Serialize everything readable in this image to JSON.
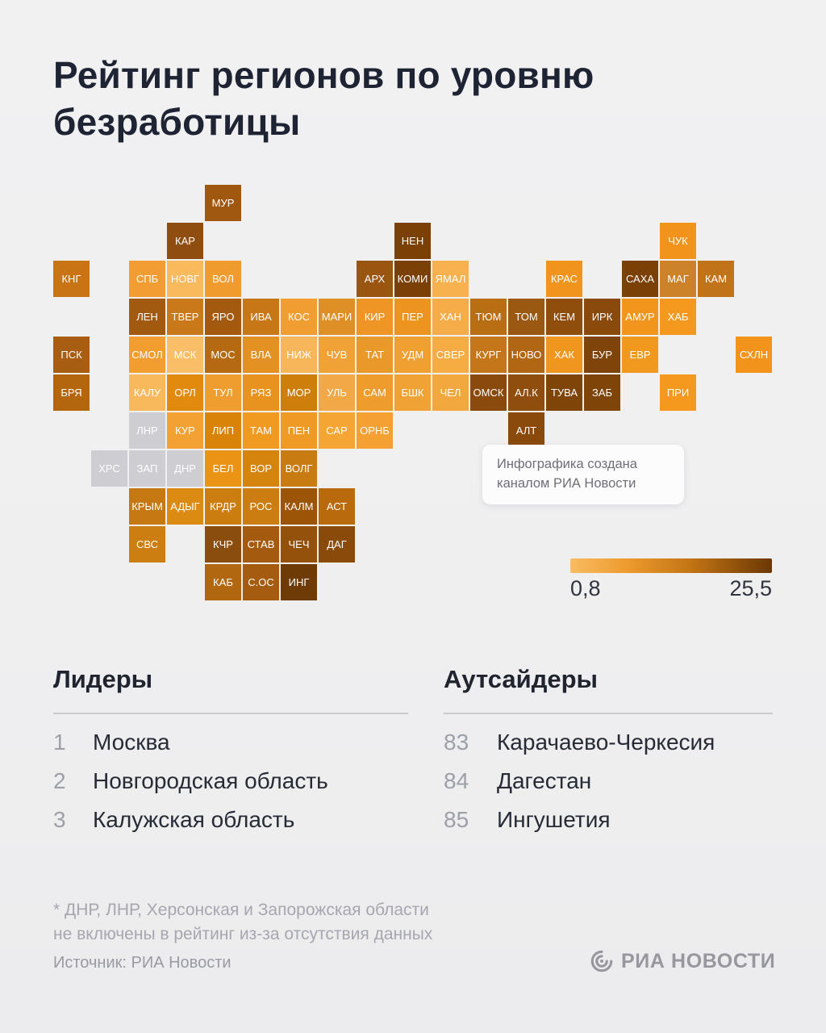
{
  "title_lines": [
    "Рейтинг регионов по уровню",
    "безработицы"
  ],
  "chart_data": {
    "type": "heatmap",
    "title": "Рейтинг регионов по уровню безработицы",
    "legend": {
      "min": 0.8,
      "max": 25.5,
      "min_label": "0,8",
      "max_label": "25,5",
      "start_color": "#F8BC62",
      "mid_colors": [
        "#EE9B2E",
        "#C27414"
      ],
      "end_color": "#6B3805",
      "excluded_color": "#CDCDD2"
    },
    "tiles": [
      {
        "label": "МУР",
        "row": 1,
        "col": 5,
        "color": "#A05710"
      },
      {
        "label": "КАР",
        "row": 2,
        "col": 4,
        "color": "#8F4D10"
      },
      {
        "label": "НЕН",
        "row": 2,
        "col": 10,
        "color": "#7A4005"
      },
      {
        "label": "ЧУК",
        "row": 2,
        "col": 17,
        "color": "#F2941C"
      },
      {
        "label": "КНГ",
        "row": 3,
        "col": 1,
        "color": "#C97414"
      },
      {
        "label": "СПБ",
        "row": 3,
        "col": 3,
        "color": "#F29D33"
      },
      {
        "label": "НОВГ",
        "row": 3,
        "col": 4,
        "color": "#F9BA5E"
      },
      {
        "label": "ВОЛ",
        "row": 3,
        "col": 5,
        "color": "#F09B2E"
      },
      {
        "label": "АРХ",
        "row": 3,
        "col": 9,
        "color": "#9A5510"
      },
      {
        "label": "КОМИ",
        "row": 3,
        "col": 10,
        "color": "#7A4005"
      },
      {
        "label": "ЯМАЛ",
        "row": 3,
        "col": 11,
        "color": "#F7B14F"
      },
      {
        "label": "КРАС",
        "row": 3,
        "col": 14,
        "color": "#F0941E"
      },
      {
        "label": "САХА",
        "row": 3,
        "col": 16,
        "color": "#7A4005"
      },
      {
        "label": "МАГ",
        "row": 3,
        "col": 17,
        "color": "#CC8228"
      },
      {
        "label": "КАМ",
        "row": 3,
        "col": 18,
        "color": "#C1731A"
      },
      {
        "label": "ЛЕН",
        "row": 4,
        "col": 3,
        "color": "#A25A10"
      },
      {
        "label": "ТВЕР",
        "row": 4,
        "col": 4,
        "color": "#C9791A"
      },
      {
        "label": "ЯРО",
        "row": 4,
        "col": 5,
        "color": "#A3590E"
      },
      {
        "label": "ИВА",
        "row": 4,
        "col": 6,
        "color": "#C87717"
      },
      {
        "label": "КОС",
        "row": 4,
        "col": 7,
        "color": "#F09E31"
      },
      {
        "label": "МАРИ",
        "row": 4,
        "col": 8,
        "color": "#DE8F26"
      },
      {
        "label": "КИР",
        "row": 4,
        "col": 9,
        "color": "#EE9526"
      },
      {
        "label": "ПЕР",
        "row": 4,
        "col": 10,
        "color": "#ED9320"
      },
      {
        "label": "ХАН",
        "row": 4,
        "col": 11,
        "color": "#F6AD49"
      },
      {
        "label": "ТЮМ",
        "row": 4,
        "col": 12,
        "color": "#B96E14"
      },
      {
        "label": "ТОМ",
        "row": 4,
        "col": 13,
        "color": "#9A5810"
      },
      {
        "label": "КЕМ",
        "row": 4,
        "col": 14,
        "color": "#8F4E0C"
      },
      {
        "label": "ИРК",
        "row": 4,
        "col": 15,
        "color": "#8A4A0C"
      },
      {
        "label": "АМУР",
        "row": 4,
        "col": 16,
        "color": "#F2951C"
      },
      {
        "label": "ХАБ",
        "row": 4,
        "col": 17,
        "color": "#F5991E"
      },
      {
        "label": "ПСК",
        "row": 5,
        "col": 1,
        "color": "#A85E12"
      },
      {
        "label": "СМОЛ",
        "row": 5,
        "col": 3,
        "color": "#F29D2F"
      },
      {
        "label": "МСК",
        "row": 5,
        "col": 4,
        "color": "#F9BE67"
      },
      {
        "label": "МОС",
        "row": 5,
        "col": 5,
        "color": "#B56A12"
      },
      {
        "label": "ВЛА",
        "row": 5,
        "col": 6,
        "color": "#E39122"
      },
      {
        "label": "НИЖ",
        "row": 5,
        "col": 7,
        "color": "#F8B65A"
      },
      {
        "label": "ЧУВ",
        "row": 5,
        "col": 8,
        "color": "#F0A236"
      },
      {
        "label": "ТАТ",
        "row": 5,
        "col": 9,
        "color": "#E9992A"
      },
      {
        "label": "УДМ",
        "row": 5,
        "col": 10,
        "color": "#F0A030"
      },
      {
        "label": "СВЕР",
        "row": 5,
        "col": 11,
        "color": "#F5AC42"
      },
      {
        "label": "КУРГ",
        "row": 5,
        "col": 12,
        "color": "#C5761A"
      },
      {
        "label": "НОВО",
        "row": 5,
        "col": 13,
        "color": "#B06612"
      },
      {
        "label": "ХАК",
        "row": 5,
        "col": 14,
        "color": "#F0961E"
      },
      {
        "label": "БУР",
        "row": 5,
        "col": 15,
        "color": "#7E440A"
      },
      {
        "label": "ЕВР",
        "row": 5,
        "col": 16,
        "color": "#F1991F"
      },
      {
        "label": "СХЛН",
        "row": 5,
        "col": 19,
        "color": "#F2941C"
      },
      {
        "label": "БРЯ",
        "row": 6,
        "col": 1,
        "color": "#B4660E"
      },
      {
        "label": "КАЛУ",
        "row": 6,
        "col": 3,
        "color": "#F8B95C"
      },
      {
        "label": "ОРЛ",
        "row": 6,
        "col": 4,
        "color": "#E28A0E"
      },
      {
        "label": "ТУЛ",
        "row": 6,
        "col": 5,
        "color": "#EE9D2E"
      },
      {
        "label": "РЯЗ",
        "row": 6,
        "col": 6,
        "color": "#E8931F"
      },
      {
        "label": "МОР",
        "row": 6,
        "col": 7,
        "color": "#CE7F0B"
      },
      {
        "label": "УЛЬ",
        "row": 6,
        "col": 8,
        "color": "#F3A847"
      },
      {
        "label": "САМ",
        "row": 6,
        "col": 9,
        "color": "#EE9C2B"
      },
      {
        "label": "БШК",
        "row": 6,
        "col": 10,
        "color": "#F0A235"
      },
      {
        "label": "ЧЕЛ",
        "row": 6,
        "col": 11,
        "color": "#F2A83E"
      },
      {
        "label": "ОМСК",
        "row": 6,
        "col": 12,
        "color": "#8A4A0E"
      },
      {
        "label": "АЛ.К",
        "row": 6,
        "col": 13,
        "color": "#8F4E0E"
      },
      {
        "label": "ТУВА",
        "row": 6,
        "col": 14,
        "color": "#7E4408"
      },
      {
        "label": "ЗАБ",
        "row": 6,
        "col": 15,
        "color": "#7E4408"
      },
      {
        "label": "ПРИ",
        "row": 6,
        "col": 17,
        "color": "#F5991E"
      },
      {
        "label": "ЛНР",
        "row": 7,
        "col": 3,
        "color": "#CDCDD2",
        "excluded": true
      },
      {
        "label": "КУР",
        "row": 7,
        "col": 4,
        "color": "#F2A132"
      },
      {
        "label": "ЛИП",
        "row": 7,
        "col": 5,
        "color": "#D98408"
      },
      {
        "label": "ТАМ",
        "row": 7,
        "col": 6,
        "color": "#F09A22"
      },
      {
        "label": "ПЕН",
        "row": 7,
        "col": 7,
        "color": "#F09A26"
      },
      {
        "label": "САР",
        "row": 7,
        "col": 8,
        "color": "#F4A534"
      },
      {
        "label": "ОРНБ",
        "row": 7,
        "col": 9,
        "color": "#F4A032"
      },
      {
        "label": "АЛТ",
        "row": 7,
        "col": 13,
        "color": "#8A4A0C"
      },
      {
        "label": "ХРС",
        "row": 8,
        "col": 2,
        "color": "#CDCDD2",
        "excluded": true
      },
      {
        "label": "ЗАП",
        "row": 8,
        "col": 3,
        "color": "#CDCDD2",
        "excluded": true
      },
      {
        "label": "ДНР",
        "row": 8,
        "col": 4,
        "color": "#CDCDD2",
        "excluded": true
      },
      {
        "label": "БЕЛ",
        "row": 8,
        "col": 5,
        "color": "#EA9314"
      },
      {
        "label": "ВОР",
        "row": 8,
        "col": 6,
        "color": "#D5850E"
      },
      {
        "label": "ВОЛГ",
        "row": 8,
        "col": 7,
        "color": "#C87B10"
      },
      {
        "label": "КРЫМ",
        "row": 9,
        "col": 3,
        "color": "#C67812"
      },
      {
        "label": "АДЫГ",
        "row": 9,
        "col": 4,
        "color": "#DB8A12"
      },
      {
        "label": "КРДР",
        "row": 9,
        "col": 5,
        "color": "#CC7D10"
      },
      {
        "label": "РОС",
        "row": 9,
        "col": 6,
        "color": "#CB7D12"
      },
      {
        "label": "КАЛМ",
        "row": 9,
        "col": 7,
        "color": "#9C5507"
      },
      {
        "label": "АСТ",
        "row": 9,
        "col": 8,
        "color": "#B96A0D"
      },
      {
        "label": "СВС",
        "row": 10,
        "col": 3,
        "color": "#CC7E10"
      },
      {
        "label": "КЧР",
        "row": 10,
        "col": 5,
        "color": "#8B4D0D"
      },
      {
        "label": "СТАВ",
        "row": 10,
        "col": 6,
        "color": "#A45B10"
      },
      {
        "label": "ЧЕЧ",
        "row": 10,
        "col": 7,
        "color": "#93510C"
      },
      {
        "label": "ДАГ",
        "row": 10,
        "col": 8,
        "color": "#8A4A0A"
      },
      {
        "label": "КАБ",
        "row": 11,
        "col": 5,
        "color": "#B16710"
      },
      {
        "label": "С.ОС",
        "row": 11,
        "col": 6,
        "color": "#A55C10"
      },
      {
        "label": "ИНГ",
        "row": 11,
        "col": 7,
        "color": "#6E3A06"
      }
    ]
  },
  "map_note": {
    "lines": [
      "Инфографика создана",
      "каналом РИА Новости"
    ]
  },
  "leaders": {
    "heading": "Лидеры",
    "items": [
      {
        "rank": "1",
        "name": "Москва"
      },
      {
        "rank": "2",
        "name": "Новгородская область"
      },
      {
        "rank": "3",
        "name": "Калужская область"
      }
    ]
  },
  "outsiders": {
    "heading": "Аутсайдеры",
    "items": [
      {
        "rank": "83",
        "name": "Карачаево-Черкесия"
      },
      {
        "rank": "84",
        "name": "Дагестан"
      },
      {
        "rank": "85",
        "name": "Ингушетия"
      }
    ]
  },
  "footnote": {
    "lines": [
      "* ДНР, ЛНР, Херсонская и Запорожская области",
      "не включены в рейтинг из-за отсутствия данных"
    ]
  },
  "source": "Источник: РИА Новости",
  "logo": {
    "text": "РИА НОВОСТИ"
  }
}
